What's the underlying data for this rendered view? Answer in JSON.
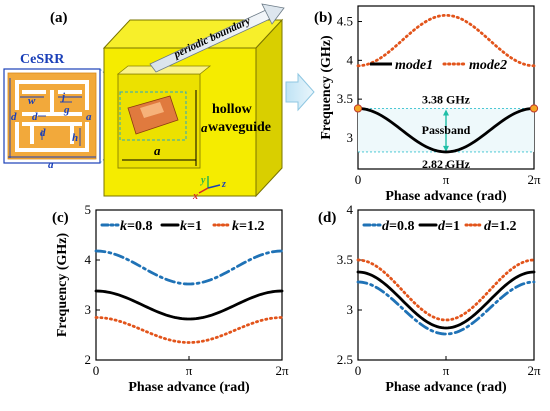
{
  "figure": {
    "panel_a": {
      "label": "(a)",
      "cesrr_title": "CeSRR",
      "dims": {
        "w": "w",
        "j": "j",
        "d": "d",
        "g": "g",
        "a": "a",
        "h": "h"
      },
      "periodic_boundary": "periodic boundary",
      "waveguide_label_1": "hollow",
      "waveguide_label_2": "waveguide",
      "axes": {
        "x": "x",
        "y": "y",
        "z": "z"
      }
    },
    "panel_b": {
      "label": "(b)",
      "annotation_high": "3.38 GHz",
      "annotation_low": "2.82 GHz",
      "passband": "Passband"
    },
    "panel_c": {
      "label": "(c)"
    },
    "panel_d": {
      "label": "(d)"
    }
  },
  "colors": {
    "black": "#000000",
    "orange": "#e2541b",
    "blue": "#1f72b6",
    "cube": "#f5ec00",
    "cesrr_bg": "#ffffff",
    "srr": "#f2a93b"
  },
  "chart_data": [
    {
      "type": "line",
      "panel": "(b)",
      "xlabel": "Phase advance (rad)",
      "ylabel": "Frequency (GHz)",
      "xlim": [
        0,
        6.2832
      ],
      "ylim": [
        2.6,
        4.7
      ],
      "xticks": [
        "0",
        "π",
        "2π"
      ],
      "yticks": [
        "3",
        "3.5",
        "4",
        "4.5"
      ],
      "series": [
        {
          "name": "mode1",
          "style": "solid",
          "color": "#000000",
          "x": [
            0,
            3.1416,
            6.2832
          ],
          "y": [
            3.38,
            2.82,
            3.38
          ]
        },
        {
          "name": "mode2",
          "style": "dotted",
          "color": "#e2541b",
          "x": [
            0,
            3.1416,
            6.2832
          ],
          "y": [
            3.93,
            4.58,
            3.93
          ]
        }
      ]
    },
    {
      "type": "line",
      "panel": "(c)",
      "xlabel": "Phase advance (rad)",
      "ylabel": "Frequency (GHz)",
      "xlim": [
        0,
        6.2832
      ],
      "ylim": [
        2,
        5
      ],
      "xticks": [
        "0",
        "π",
        "2π"
      ],
      "yticks": [
        "2",
        "3",
        "4",
        "5"
      ],
      "legend_prefix": "k",
      "series": [
        {
          "name": "=0.8",
          "style": "dashdot",
          "color": "#1f72b6",
          "x": [
            0,
            3.1416,
            6.2832
          ],
          "y": [
            4.18,
            3.52,
            4.18
          ]
        },
        {
          "name": "=1",
          "style": "solid",
          "color": "#000000",
          "x": [
            0,
            3.1416,
            6.2832
          ],
          "y": [
            3.38,
            2.82,
            3.38
          ]
        },
        {
          "name": "=1.2",
          "style": "dotted",
          "color": "#e2541b",
          "x": [
            0,
            3.1416,
            6.2832
          ],
          "y": [
            2.85,
            2.35,
            2.85
          ]
        }
      ]
    },
    {
      "type": "line",
      "panel": "(d)",
      "xlabel": "Phase advance (rad)",
      "ylabel": "",
      "xlim": [
        0,
        6.2832
      ],
      "ylim": [
        2.5,
        4
      ],
      "xticks": [
        "0",
        "π",
        "2π"
      ],
      "yticks": [
        "2.5",
        "3",
        "3.5",
        "4"
      ],
      "legend_prefix": "d",
      "series": [
        {
          "name": "=0.8",
          "style": "dashdot",
          "color": "#1f72b6",
          "x": [
            0,
            3.1416,
            6.2832
          ],
          "y": [
            3.28,
            2.76,
            3.28
          ]
        },
        {
          "name": "=1",
          "style": "solid",
          "color": "#000000",
          "x": [
            0,
            3.1416,
            6.2832
          ],
          "y": [
            3.38,
            2.82,
            3.38
          ]
        },
        {
          "name": "=1.2",
          "style": "dotted",
          "color": "#e2541b",
          "x": [
            0,
            3.1416,
            6.2832
          ],
          "y": [
            3.5,
            2.9,
            3.5
          ]
        }
      ]
    }
  ]
}
